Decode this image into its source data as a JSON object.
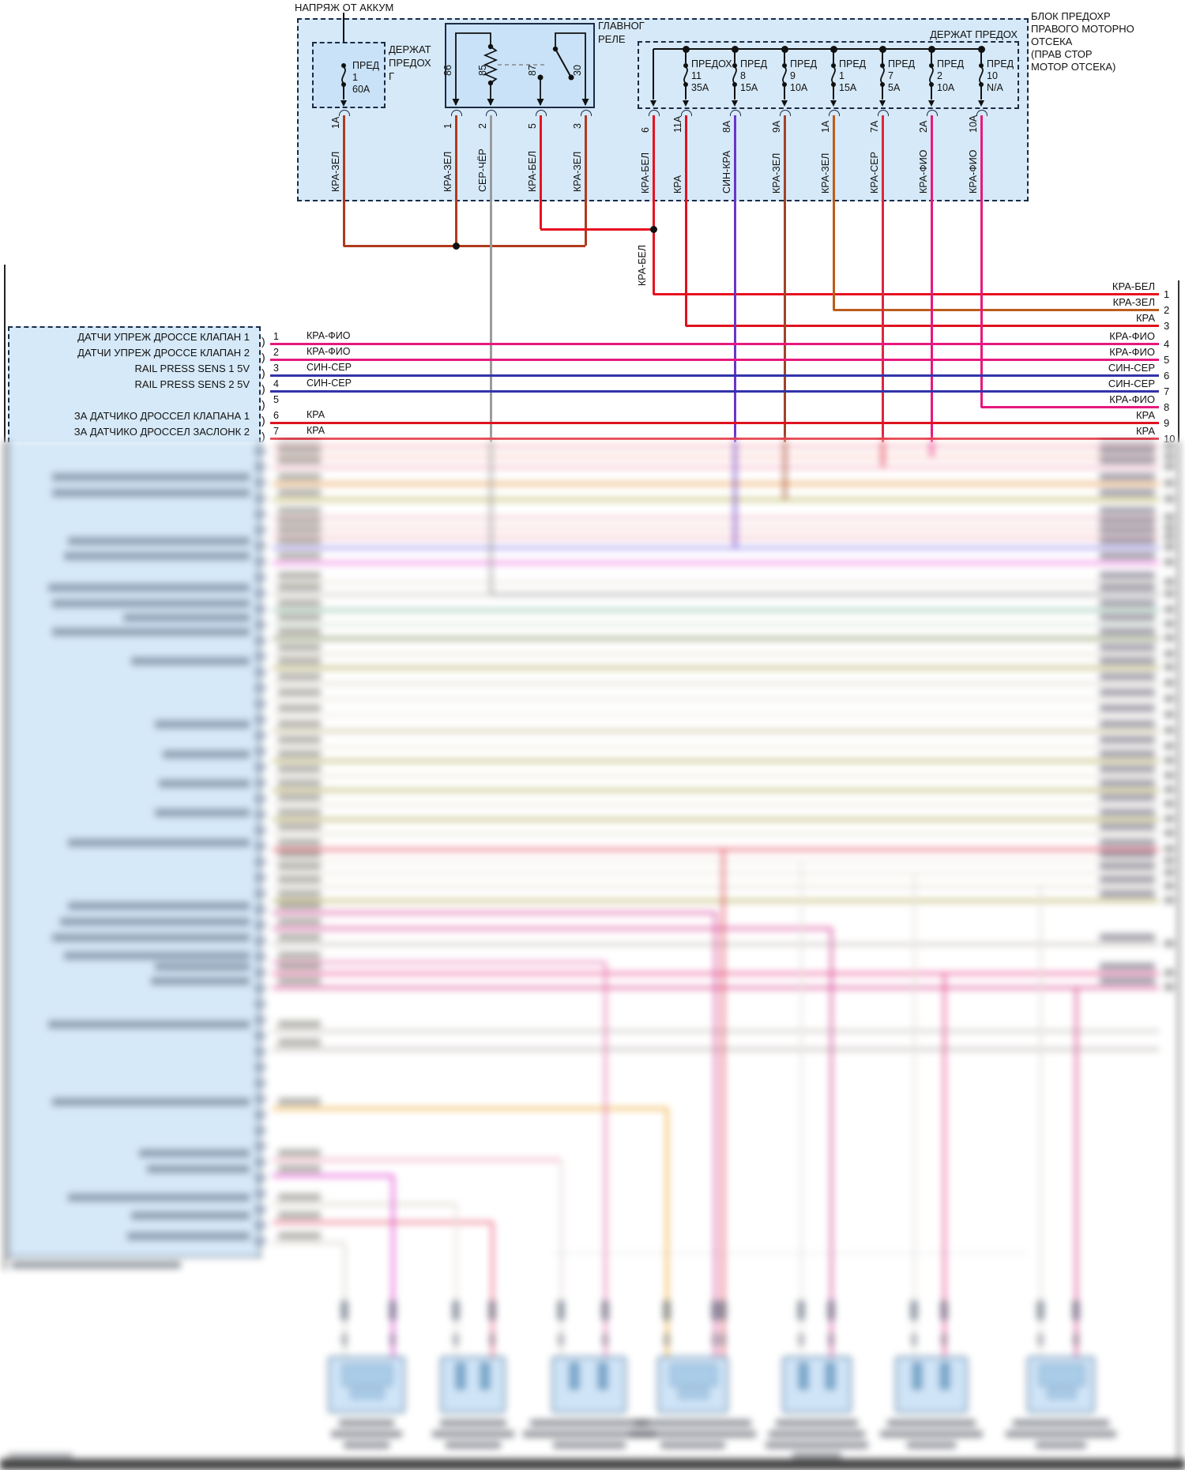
{
  "colors": {
    "kra": "#e0121f",
    "kra_bel": "#e81220",
    "kra_zel": "#b03a1e",
    "kra_zel_orange": "#bc5c1e",
    "kra_zel_dark": "#a0432a",
    "sin_kra": "#6a35c8",
    "kra_ser": "#dc2840",
    "kra_fio": "#e6197e",
    "ser_cher": "#9b9b9b",
    "sin_ser": "#3333aa",
    "box_fill": "#d6e9f8",
    "box_fill_dark": "#c9e2f7",
    "border_navy": "#1b2b45"
  },
  "top": {
    "battery_label": "НАПРЯЖ ОТ АККУМ",
    "fuse_holder_small": {
      "title_lines": [
        "ДЕРЖАТ",
        "ПРЕДОХ",
        "Г"
      ],
      "fuse_name": "ПРЕД",
      "fuse_number": "1",
      "fuse_amps": "60А",
      "out_pin": "1А",
      "out_wire": "КРА-ЗЕЛ"
    },
    "main_relay": {
      "title_lines": [
        "ГЛАВНОГ",
        "РЕЛЕ"
      ],
      "pins": [
        "86",
        "85",
        "87",
        "30"
      ],
      "outputs": [
        {
          "pin": "1",
          "wire": "КРА-ЗЕЛ"
        },
        {
          "pin": "2",
          "wire": "СЕР-ЧЁР"
        },
        {
          "pin": "5",
          "wire": "КРА-БЕЛ"
        },
        {
          "pin": "3",
          "wire": "КРА-ЗЕЛ"
        }
      ]
    },
    "fuse_holder_right": {
      "title": "ДЕРЖАТ ПРЕДОХ",
      "note_lines": [
        "БЛОК ПРЕДОХР",
        "ПРАВОГО МОТОРНО",
        "ОТСЕКА",
        "(ПРАВ СТОР",
        "МОТОР ОТСЕКА)"
      ],
      "fuses": [
        {
          "name": "ПРЕДОХ",
          "number": "11",
          "amps": "35А"
        },
        {
          "name": "ПРЕД",
          "number": "8",
          "amps": "15А"
        },
        {
          "name": "ПРЕД",
          "number": "9",
          "amps": "10А"
        },
        {
          "name": "ПРЕД",
          "number": "1",
          "amps": "15А"
        },
        {
          "name": "ПРЕД",
          "number": "7",
          "amps": "5А"
        },
        {
          "name": "ПРЕД",
          "number": "2",
          "amps": "10А"
        },
        {
          "name": "ПРЕД",
          "number": "10",
          "amps": "N/A"
        }
      ],
      "outputs": [
        {
          "pin": "6",
          "wire": "КРА-БЕЛ"
        },
        {
          "pin": "11А",
          "wire": "КРА"
        },
        {
          "pin": "8А",
          "wire": "СИН-КРА"
        },
        {
          "pin": "9А",
          "wire": "КРА-ЗЕЛ"
        },
        {
          "pin": "1А",
          "wire": "КРА-ЗЕЛ"
        },
        {
          "pin": "7А",
          "wire": "КРА-СЕР"
        },
        {
          "pin": "2А",
          "wire": "КРА-ФИО"
        },
        {
          "pin": "10А",
          "wire": "КРА-ФИО"
        }
      ]
    },
    "junction_wire_label": "КРА-БЕЛ"
  },
  "ecu": {
    "rows": [
      {
        "pin": "1",
        "label": "ДАТЧИ УПРЕЖ ДРОССЕ КЛАПАН 1",
        "wire": "КРА-ФИО"
      },
      {
        "pin": "2",
        "label": "ДАТЧИ УПРЕЖ ДРОССЕ КЛАПАН 2",
        "wire": "КРА-ФИО"
      },
      {
        "pin": "3",
        "label": "RAIL PRESS SENS 1 5V",
        "wire": "СИН-СЕР"
      },
      {
        "pin": "4",
        "label": "RAIL PRESS SENS 2 5V",
        "wire": "СИН-СЕР"
      },
      {
        "pin": "5",
        "label": "",
        "wire": ""
      },
      {
        "pin": "6",
        "label": "ЗА ДАТЧИКО ДРОССЕЛ КЛАПАНА 1",
        "wire": "КРА"
      },
      {
        "pin": "7",
        "label": "ЗА ДАТЧИКО ДРОССЕЛ ЗАСЛОНК 2",
        "wire": "КРА"
      }
    ]
  },
  "right_edge": {
    "pins": [
      {
        "pin": "1",
        "wire": "КРА-БЕЛ"
      },
      {
        "pin": "2",
        "wire": "КРА-ЗЕЛ"
      },
      {
        "pin": "3",
        "wire": "КРА"
      },
      {
        "pin": "4",
        "wire": "КРА-ФИО"
      },
      {
        "pin": "5",
        "wire": "КРА-ФИО"
      },
      {
        "pin": "6",
        "wire": "СИН-СЕР"
      },
      {
        "pin": "7",
        "wire": "СИН-СЕР"
      },
      {
        "pin": "8",
        "wire": "КРА-ФИО"
      },
      {
        "pin": "9",
        "wire": "КРА"
      },
      {
        "pin": "10",
        "wire": "КРА"
      }
    ]
  },
  "blurred_region": {
    "note": "lower portion of source image is blurred beyond legibility"
  }
}
